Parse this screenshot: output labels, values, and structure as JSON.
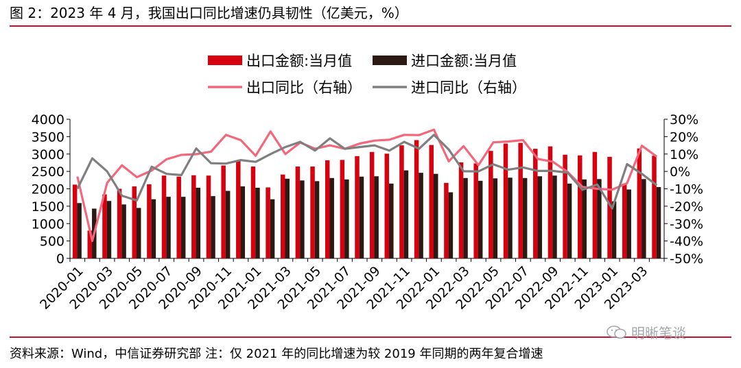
{
  "title": "图 2：2023 年 4 月，我国出口同比增速仍具韧性（亿美元，%）",
  "footer": "资料来源：Wind，中信证券研究部 注：仅 2021 年的同比增速为较 2019 年同期的两年复合增速",
  "watermark": "明晰笔谈",
  "colors": {
    "export_bar": "#d7000f",
    "import_bar": "#2b1a14",
    "export_line": "#f4667a",
    "import_line": "#7f7f7f",
    "rule": "#c8102e"
  },
  "chart_data": {
    "type": "bar+line",
    "legend_position": "top",
    "categories": [
      "2020-01",
      "2020-02",
      "2020-03",
      "2020-04",
      "2020-05",
      "2020-06",
      "2020-07",
      "2020-08",
      "2020-09",
      "2020-10",
      "2020-11",
      "2020-12",
      "2021-01",
      "2021-02",
      "2021-03",
      "2021-04",
      "2021-05",
      "2021-06",
      "2021-07",
      "2021-08",
      "2021-09",
      "2021-10",
      "2021-11",
      "2021-12",
      "2022-01",
      "2022-02",
      "2022-03",
      "2022-04",
      "2022-05",
      "2022-06",
      "2022-07",
      "2022-08",
      "2022-09",
      "2022-10",
      "2022-11",
      "2022-12",
      "2023-01",
      "2023-02",
      "2023-03",
      "2023-04"
    ],
    "x_tick_labels": [
      "2020-01",
      "2020-03",
      "2020-05",
      "2020-07",
      "2020-09",
      "2020-11",
      "2021-01",
      "2021-03",
      "2021-05",
      "2021-07",
      "2021-09",
      "2021-11",
      "2022-01",
      "2022-03",
      "2022-05",
      "2022-07",
      "2022-09",
      "2022-11",
      "2023-01",
      "2023-03"
    ],
    "y_left": {
      "min": 0,
      "max": 4000,
      "ticks": [
        0,
        500,
        1000,
        1500,
        2000,
        2500,
        3000,
        3500,
        4000
      ]
    },
    "y_right": {
      "min": -50,
      "max": 30,
      "ticks": [
        -50,
        -40,
        -30,
        -20,
        -10,
        0,
        10,
        20,
        30
      ],
      "tick_labels": [
        "-50%",
        "-40%",
        "-30%",
        "-20%",
        "-10%",
        "0%",
        "10%",
        "20%",
        "30%"
      ]
    },
    "series": [
      {
        "name": "出口金额:当月值",
        "kind": "bar",
        "axis": "left",
        "values": [
          2120,
          800,
          1840,
          2000,
          2070,
          2130,
          2380,
          2350,
          2390,
          2380,
          2670,
          2820,
          2640,
          2040,
          2410,
          2640,
          2640,
          2820,
          2830,
          2940,
          3060,
          3010,
          3250,
          3400,
          3260,
          2170,
          2760,
          2730,
          3090,
          3300,
          3320,
          3150,
          3220,
          2980,
          2960,
          3060,
          2920,
          2150,
          3160,
          2950
        ]
      },
      {
        "name": "进口金额:当月值",
        "kind": "bar",
        "axis": "left",
        "values": [
          1590,
          1430,
          1650,
          1550,
          1450,
          1700,
          1770,
          1770,
          2030,
          1790,
          1940,
          2070,
          2030,
          1700,
          2290,
          2240,
          2220,
          2310,
          2270,
          2350,
          2360,
          2150,
          2530,
          2460,
          2430,
          1900,
          2310,
          2230,
          2300,
          2320,
          2310,
          2360,
          2380,
          2150,
          2270,
          2280,
          1640,
          1980,
          2280,
          2050
        ]
      },
      {
        "name": "出口同比（右轴）",
        "kind": "line",
        "axis": "right",
        "values": [
          -3,
          -40,
          -6.6,
          3.5,
          -3.3,
          0.5,
          7,
          9.5,
          9.9,
          11.4,
          21,
          18,
          9,
          23,
          10,
          16.6,
          13,
          15,
          13,
          16,
          17.7,
          18.2,
          21,
          20.9,
          24,
          5.8,
          14.5,
          3.6,
          16.7,
          17.2,
          18,
          7.2,
          5.6,
          -0.3,
          -8.9,
          -10,
          -10.5,
          -6.8,
          14.8,
          8.5
        ]
      },
      {
        "name": "进口同比（右轴）",
        "kind": "line",
        "axis": "right",
        "values": [
          -10,
          7.5,
          0,
          -14,
          -16.7,
          2.7,
          -1.4,
          -2.1,
          13.2,
          4.7,
          4.5,
          6.5,
          5.5,
          10,
          14,
          17,
          12,
          19,
          13,
          14,
          15,
          12,
          17,
          13,
          21,
          12.6,
          0.1,
          0,
          4.1,
          1,
          2.3,
          0.3,
          0.3,
          -0.7,
          -10.6,
          -7.5,
          -21.3,
          4.2,
          -1.4,
          -7.9
        ]
      }
    ]
  }
}
